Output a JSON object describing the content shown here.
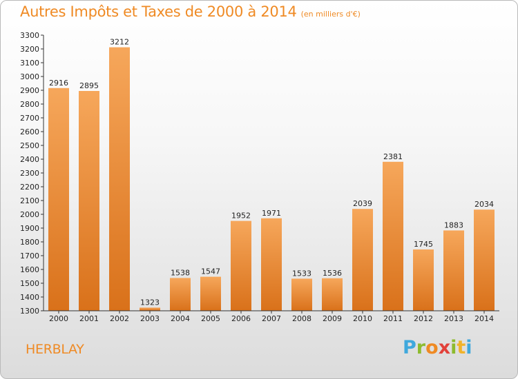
{
  "title": "Autres Impôts et Taxes de 2000 à 2014",
  "subtitle": "(en milliers d'€)",
  "location": "HERBLAY",
  "logo_text": "Proxiti",
  "colors": {
    "accent": "#ef8a24",
    "bar_top": "#f6a75b",
    "bar_bottom": "#d9711a"
  },
  "chart_data": {
    "type": "bar",
    "title": "Autres Impôts et Taxes de 2000 à 2014",
    "subtitle": "(en milliers d'€)",
    "categories": [
      "2000",
      "2001",
      "2002",
      "2003",
      "2004",
      "2005",
      "2006",
      "2007",
      "2008",
      "2009",
      "2010",
      "2011",
      "2012",
      "2013",
      "2014"
    ],
    "values": [
      2916,
      2895,
      3212,
      1323,
      1538,
      1547,
      1952,
      1971,
      1533,
      1536,
      2039,
      2381,
      1745,
      1883,
      2034
    ],
    "ylim": [
      1300,
      3300
    ],
    "ytick_step": 100,
    "grid": false,
    "legend": "none"
  }
}
